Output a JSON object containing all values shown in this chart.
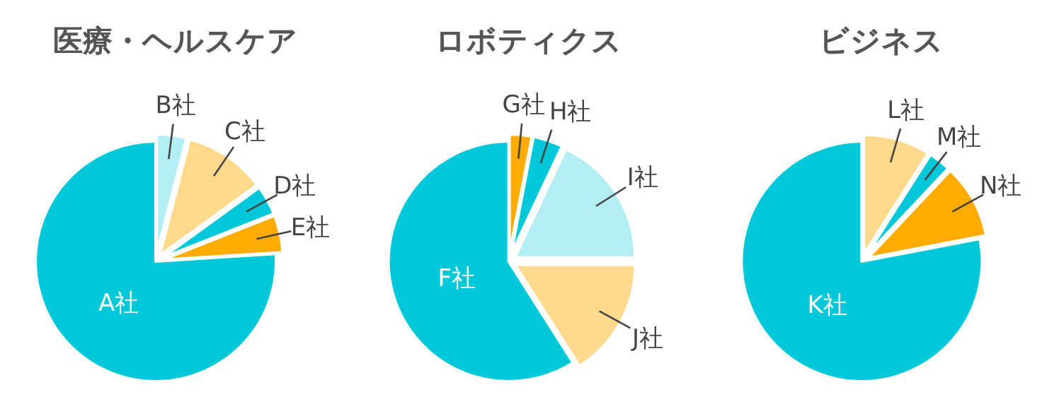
{
  "chart_data": [
    {
      "type": "pie",
      "title": "医療・ヘルスケア",
      "categories": [
        "B社",
        "C社",
        "D社",
        "E社",
        "A社"
      ],
      "values": [
        4,
        11,
        4,
        5,
        76
      ],
      "colors": [
        "#b3eef3",
        "#ffd98c",
        "#00c8d8",
        "#ffab00",
        "#00c8d8"
      ]
    },
    {
      "type": "pie",
      "title": "ロボティクス",
      "categories": [
        "G社",
        "H社",
        "I社",
        "J社",
        "F社"
      ],
      "values": [
        3,
        4,
        18,
        16,
        59
      ],
      "colors": [
        "#ffab00",
        "#00c8d8",
        "#b3eef3",
        "#ffd98c",
        "#00c8d8"
      ]
    },
    {
      "type": "pie",
      "title": "ビジネス",
      "categories": [
        "L社",
        "M社",
        "N社",
        "K社"
      ],
      "values": [
        9,
        3,
        10,
        78
      ],
      "colors": [
        "#ffd98c",
        "#00c8d8",
        "#ffab00",
        "#00c8d8"
      ]
    }
  ]
}
